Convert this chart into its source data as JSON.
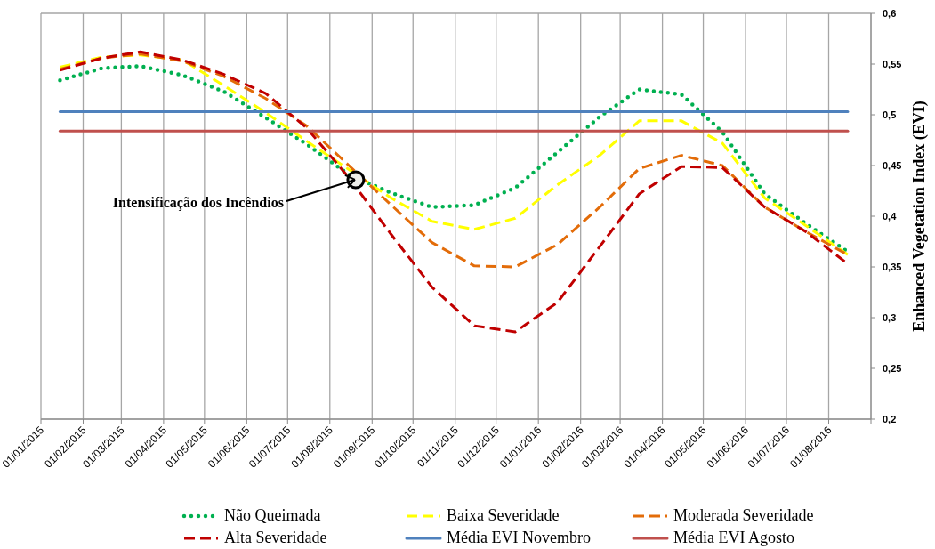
{
  "chart_data": {
    "type": "line",
    "ylabel": "Enhanced Vegetation Index (EVI)",
    "x": [
      "2015-01-15",
      "2015-02-15",
      "2015-03-15",
      "2015-04-15",
      "2015-05-15",
      "2015-06-15",
      "2015-07-15",
      "2015-08-15",
      "2015-09-15",
      "2015-10-15",
      "2015-11-15",
      "2015-12-15",
      "2016-01-15",
      "2016-02-15",
      "2016-03-15",
      "2016-04-15",
      "2016-05-15",
      "2016-06-15",
      "2016-07-15",
      "2016-08-15"
    ],
    "series": [
      {
        "name": "Não Queimada",
        "color": "#00b050",
        "line_style": "dotted",
        "values": [
          0.534,
          0.546,
          0.548,
          0.539,
          0.523,
          0.497,
          0.471,
          0.441,
          0.423,
          0.409,
          0.411,
          0.428,
          0.463,
          0.498,
          0.525,
          0.52,
          0.483,
          0.422,
          0.393,
          0.365
        ]
      },
      {
        "name": "Baixa Severidade",
        "color": "#ffff00",
        "line_style": "dashed",
        "values": [
          0.547,
          0.557,
          0.559,
          0.554,
          0.529,
          0.502,
          0.474,
          0.446,
          0.418,
          0.395,
          0.387,
          0.398,
          0.431,
          0.46,
          0.494,
          0.494,
          0.472,
          0.418,
          0.391,
          0.362
        ]
      },
      {
        "name": "Moderada Severidade",
        "color": "#e36c09",
        "line_style": "dashed",
        "values": [
          0.545,
          0.556,
          0.56,
          0.553,
          0.538,
          0.516,
          0.489,
          0.45,
          0.411,
          0.374,
          0.351,
          0.35,
          0.372,
          0.409,
          0.447,
          0.46,
          0.45,
          0.409,
          0.385,
          0.362
        ]
      },
      {
        "name": "Alta Severidade",
        "color": "#c00000",
        "line_style": "dashed",
        "values": [
          0.544,
          0.556,
          0.562,
          0.554,
          0.54,
          0.521,
          0.487,
          0.438,
          0.382,
          0.33,
          0.292,
          0.286,
          0.315,
          0.37,
          0.422,
          0.449,
          0.448,
          0.409,
          0.385,
          0.353
        ]
      },
      {
        "name": "Média EVI Novembro",
        "color": "#4f81bd",
        "line_style": "solid",
        "values": [
          0.503,
          0.503,
          0.503,
          0.503,
          0.503,
          0.503,
          0.503,
          0.503,
          0.503,
          0.503,
          0.503,
          0.503,
          0.503,
          0.503,
          0.503,
          0.503,
          0.503,
          0.503,
          0.503,
          0.503
        ]
      },
      {
        "name": "Média EVI Agosto",
        "color": "#c0504d",
        "line_style": "solid",
        "values": [
          0.484,
          0.484,
          0.484,
          0.484,
          0.484,
          0.484,
          0.484,
          0.484,
          0.484,
          0.484,
          0.484,
          0.484,
          0.484,
          0.484,
          0.484,
          0.484,
          0.484,
          0.484,
          0.484,
          0.484
        ]
      }
    ],
    "xlim": [
      "2015-01-01",
      "2016-09-01"
    ],
    "xticks": [
      {
        "value": "2015-01-01",
        "label": "01/01/2015"
      },
      {
        "value": "2015-02-01",
        "label": "01/02/2015"
      },
      {
        "value": "2015-03-01",
        "label": "01/03/2015"
      },
      {
        "value": "2015-04-01",
        "label": "01/04/2015"
      },
      {
        "value": "2015-05-01",
        "label": "01/05/2015"
      },
      {
        "value": "2015-06-01",
        "label": "01/06/2015"
      },
      {
        "value": "2015-07-01",
        "label": "01/07/2015"
      },
      {
        "value": "2015-08-01",
        "label": "01/08/2015"
      },
      {
        "value": "2015-09-01",
        "label": "01/09/2015"
      },
      {
        "value": "2015-10-01",
        "label": "01/10/2015"
      },
      {
        "value": "2015-11-01",
        "label": "01/11/2015"
      },
      {
        "value": "2015-12-01",
        "label": "01/12/2015"
      },
      {
        "value": "2016-01-01",
        "label": "01/01/2016"
      },
      {
        "value": "2016-02-01",
        "label": "01/02/2016"
      },
      {
        "value": "2016-03-01",
        "label": "01/03/2016"
      },
      {
        "value": "2016-04-01",
        "label": "01/04/2016"
      },
      {
        "value": "2016-05-01",
        "label": "01/05/2016"
      },
      {
        "value": "2016-06-01",
        "label": "01/06/2016"
      },
      {
        "value": "2016-07-01",
        "label": "01/07/2016"
      },
      {
        "value": "2016-08-01",
        "label": "01/08/2016"
      },
      {
        "value": "2016-09-01",
        "label": null
      }
    ],
    "ylim": [
      0.2,
      0.6
    ],
    "yticks": [
      {
        "value": 0.2,
        "label": "0,2"
      },
      {
        "value": 0.25,
        "label": "0,25"
      },
      {
        "value": 0.3,
        "label": "0,3"
      },
      {
        "value": 0.35,
        "label": "0,35"
      },
      {
        "value": 0.4,
        "label": "0,4"
      },
      {
        "value": 0.45,
        "label": "0,45"
      },
      {
        "value": 0.5,
        "label": "0,5"
      },
      {
        "value": 0.55,
        "label": "0,55"
      },
      {
        "value": 0.6,
        "label": "0,6"
      }
    ],
    "annotations": [
      {
        "text": "Intensificação dos Incêndios",
        "x": "2015-08-20",
        "y": 0.436
      }
    ],
    "grid": true,
    "legend": "bottom",
    "marker": "none"
  }
}
